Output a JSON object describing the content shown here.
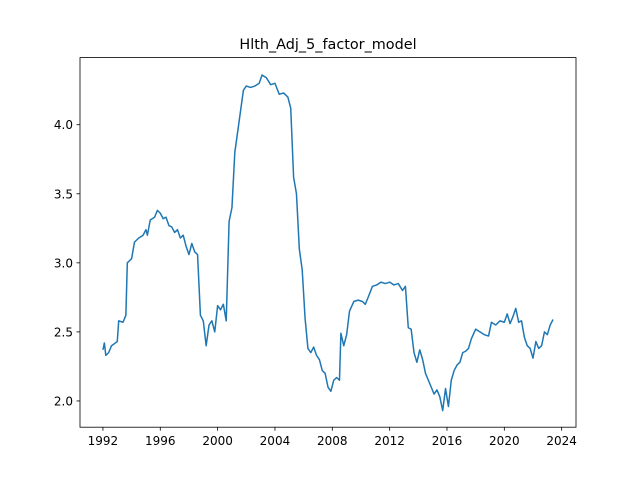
{
  "chart_data": {
    "type": "line",
    "title": "Hlth_Adj_5_factor_model",
    "xlim": [
      1990.4,
      2025.0
    ],
    "xticks": [
      1992,
      1996,
      2000,
      2004,
      2008,
      2012,
      2016,
      2020,
      2024
    ],
    "ylim": [
      1.81,
      4.486
    ],
    "yticks": [
      {
        "value": 2,
        "label": "2.0"
      },
      2.5,
      {
        "value": 3,
        "label": "3.0"
      },
      3.5,
      {
        "value": 4,
        "label": "4.0"
      }
    ],
    "grid": false,
    "x": [
      1992.0,
      1992.1,
      1992.2,
      1992.4,
      1992.6,
      1993.0,
      1993.1,
      1993.4,
      1993.6,
      1993.7,
      1994.0,
      1994.2,
      1994.5,
      1994.8,
      1995.0,
      1995.1,
      1995.3,
      1995.6,
      1995.8,
      1996.0,
      1996.2,
      1996.4,
      1996.6,
      1996.8,
      1997.0,
      1997.2,
      1997.4,
      1997.6,
      1997.8,
      1998.0,
      1998.2,
      1998.4,
      1998.6,
      1998.8,
      1999.0,
      1999.2,
      1999.4,
      1999.6,
      1999.8,
      2000.0,
      2000.2,
      2000.4,
      2000.6,
      2000.8,
      2001.0,
      2001.2,
      2001.4,
      2001.6,
      2001.8,
      2002.0,
      2002.3,
      2002.6,
      2002.9,
      2003.1,
      2003.4,
      2003.7,
      2004.0,
      2004.3,
      2004.6,
      2004.9,
      2005.1,
      2005.3,
      2005.5,
      2005.7,
      2005.9,
      2006.1,
      2006.3,
      2006.5,
      2006.7,
      2006.9,
      2007.1,
      2007.3,
      2007.5,
      2007.7,
      2007.9,
      2008.1,
      2008.3,
      2008.5,
      2008.6,
      2008.8,
      2009.0,
      2009.2,
      2009.5,
      2009.8,
      2010.1,
      2010.3,
      2010.5,
      2010.8,
      2011.1,
      2011.4,
      2011.7,
      2012.0,
      2012.3,
      2012.6,
      2012.9,
      2013.1,
      2013.3,
      2013.5,
      2013.7,
      2013.9,
      2014.1,
      2014.3,
      2014.5,
      2014.7,
      2014.9,
      2015.1,
      2015.3,
      2015.5,
      2015.7,
      2015.9,
      2016.1,
      2016.3,
      2016.5,
      2016.7,
      2016.9,
      2017.1,
      2017.3,
      2017.5,
      2017.7,
      2018.0,
      2018.3,
      2018.6,
      2018.9,
      2019.1,
      2019.4,
      2019.7,
      2020.0,
      2020.2,
      2020.4,
      2020.6,
      2020.8,
      2021.0,
      2021.2,
      2021.4,
      2021.6,
      2021.8,
      2022.0,
      2022.2,
      2022.4,
      2022.6,
      2022.8,
      2023.0,
      2023.2,
      2023.4
    ],
    "series": [
      {
        "color": "#1f77b4",
        "values": [
          2.37,
          2.42,
          2.33,
          2.35,
          2.4,
          2.43,
          2.58,
          2.57,
          2.62,
          3.0,
          3.03,
          3.15,
          3.18,
          3.2,
          3.24,
          3.2,
          3.31,
          3.33,
          3.38,
          3.36,
          3.32,
          3.33,
          3.27,
          3.26,
          3.22,
          3.24,
          3.18,
          3.2,
          3.12,
          3.06,
          3.14,
          3.08,
          3.06,
          2.62,
          2.58,
          2.4,
          2.55,
          2.58,
          2.5,
          2.69,
          2.66,
          2.7,
          2.58,
          3.3,
          3.4,
          3.8,
          3.95,
          4.1,
          4.25,
          4.28,
          4.27,
          4.28,
          4.3,
          4.36,
          4.34,
          4.29,
          4.3,
          4.22,
          4.23,
          4.2,
          4.12,
          3.62,
          3.5,
          3.1,
          2.95,
          2.6,
          2.38,
          2.35,
          2.39,
          2.33,
          2.3,
          2.22,
          2.2,
          2.1,
          2.07,
          2.15,
          2.17,
          2.15,
          2.49,
          2.4,
          2.48,
          2.65,
          2.72,
          2.73,
          2.72,
          2.7,
          2.75,
          2.83,
          2.84,
          2.86,
          2.85,
          2.86,
          2.84,
          2.85,
          2.8,
          2.83,
          2.53,
          2.52,
          2.35,
          2.28,
          2.37,
          2.3,
          2.2,
          2.15,
          2.1,
          2.05,
          2.08,
          2.03,
          1.93,
          2.09,
          1.96,
          2.15,
          2.22,
          2.26,
          2.28,
          2.35,
          2.36,
          2.38,
          2.45,
          2.52,
          2.5,
          2.48,
          2.47,
          2.57,
          2.55,
          2.58,
          2.57,
          2.63,
          2.56,
          2.61,
          2.67,
          2.57,
          2.58,
          2.46,
          2.4,
          2.38,
          2.31,
          2.43,
          2.38,
          2.4,
          2.5,
          2.48,
          2.55,
          2.59
        ]
      }
    ]
  }
}
